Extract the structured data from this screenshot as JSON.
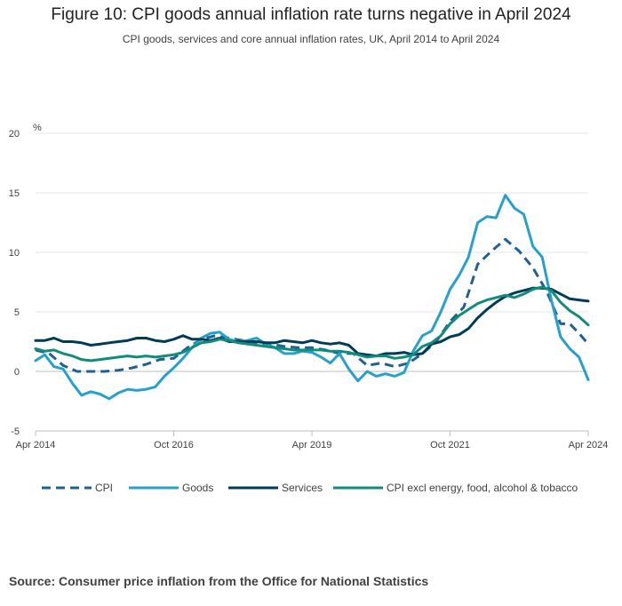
{
  "chart_data": {
    "type": "line",
    "title": "Figure 10: CPI goods annual inflation rate turns negative in April 2024",
    "subtitle": "CPI goods, services and core annual inflation rates, UK, April 2014 to April 2024",
    "ylabel": "%",
    "ylim": [
      -5,
      20
    ],
    "yticks": [
      -5,
      0,
      5,
      10,
      15,
      20
    ],
    "xlim": [
      0,
      120
    ],
    "xticks": [
      {
        "label": "Apr 2014",
        "x": 0
      },
      {
        "label": "Oct 2016",
        "x": 30
      },
      {
        "label": "Apr 2019",
        "x": 60
      },
      {
        "label": "Oct 2021",
        "x": 90
      },
      {
        "label": "Apr 2024",
        "x": 120
      }
    ],
    "grid": true,
    "legend_position": "bottom",
    "series": [
      {
        "name": "CPI",
        "color": "#206095",
        "dash": true,
        "x": [
          0,
          3,
          6,
          9,
          12,
          15,
          18,
          21,
          24,
          27,
          30,
          33,
          36,
          39,
          42,
          45,
          48,
          51,
          54,
          57,
          60,
          63,
          66,
          69,
          72,
          75,
          78,
          81,
          84,
          87,
          90,
          93,
          96,
          99,
          102,
          105,
          108,
          111,
          114,
          116,
          118,
          120
        ],
        "values": [
          1.8,
          1.5,
          0.5,
          0.0,
          0.0,
          0.0,
          0.1,
          0.3,
          0.6,
          1.0,
          1.1,
          2.0,
          2.7,
          3.0,
          2.8,
          2.6,
          2.4,
          2.3,
          2.1,
          2.0,
          2.0,
          1.8,
          1.5,
          1.5,
          0.5,
          0.7,
          0.4,
          0.7,
          1.5,
          2.5,
          4.2,
          5.4,
          9.0,
          10.1,
          11.1,
          10.1,
          8.7,
          6.7,
          4.0,
          4.0,
          3.2,
          2.3
        ]
      },
      {
        "name": "Goods",
        "color": "#27A0CC",
        "dash": false,
        "x": [
          0,
          2,
          4,
          6,
          8,
          10,
          12,
          14,
          16,
          18,
          20,
          22,
          24,
          26,
          28,
          30,
          32,
          34,
          36,
          38,
          40,
          42,
          44,
          46,
          48,
          50,
          52,
          54,
          56,
          58,
          60,
          62,
          64,
          66,
          68,
          70,
          72,
          74,
          76,
          78,
          80,
          82,
          84,
          86,
          88,
          90,
          92,
          94,
          96,
          98,
          100,
          102,
          104,
          106,
          108,
          110,
          112,
          114,
          116,
          118,
          120
        ],
        "values": [
          0.9,
          1.4,
          0.4,
          0.2,
          -1.0,
          -2.0,
          -1.7,
          -1.9,
          -2.3,
          -1.8,
          -1.5,
          -1.6,
          -1.5,
          -1.3,
          -0.4,
          0.3,
          1.1,
          2.0,
          2.8,
          3.2,
          3.3,
          2.7,
          2.5,
          2.6,
          2.8,
          2.3,
          2.0,
          1.5,
          1.5,
          1.7,
          1.6,
          1.2,
          0.7,
          1.5,
          0.2,
          -0.8,
          0.0,
          -0.4,
          -0.2,
          -0.4,
          -0.1,
          1.7,
          3.0,
          3.4,
          5.0,
          6.9,
          8.1,
          9.6,
          12.5,
          13.0,
          12.9,
          14.8,
          13.7,
          13.2,
          10.5,
          9.6,
          6.0,
          2.9,
          1.9,
          1.2,
          -0.7
        ]
      },
      {
        "name": "Services",
        "color": "#003C57",
        "dash": false,
        "x": [
          0,
          2,
          4,
          6,
          8,
          10,
          12,
          14,
          16,
          18,
          20,
          22,
          24,
          26,
          28,
          30,
          32,
          34,
          36,
          38,
          40,
          42,
          44,
          46,
          48,
          50,
          52,
          54,
          56,
          58,
          60,
          62,
          64,
          66,
          68,
          70,
          72,
          74,
          76,
          78,
          80,
          82,
          84,
          86,
          88,
          90,
          92,
          94,
          96,
          98,
          100,
          102,
          104,
          106,
          108,
          110,
          112,
          114,
          116,
          118,
          120
        ],
        "values": [
          2.6,
          2.6,
          2.8,
          2.5,
          2.5,
          2.4,
          2.2,
          2.3,
          2.4,
          2.5,
          2.6,
          2.8,
          2.8,
          2.6,
          2.5,
          2.7,
          3.0,
          2.7,
          2.7,
          2.6,
          2.8,
          2.5,
          2.5,
          2.5,
          2.5,
          2.4,
          2.4,
          2.6,
          2.5,
          2.4,
          2.6,
          2.4,
          2.3,
          2.4,
          2.2,
          1.5,
          1.4,
          1.3,
          1.5,
          1.5,
          1.6,
          1.4,
          1.5,
          2.3,
          2.5,
          2.9,
          3.1,
          3.6,
          4.5,
          5.2,
          5.8,
          6.3,
          6.6,
          6.8,
          7.0,
          7.0,
          6.9,
          6.5,
          6.1,
          6.0,
          5.9
        ]
      },
      {
        "name": "CPI excl energy, food, alcohol & tobacco",
        "color": "#118C7B",
        "dash": false,
        "x": [
          0,
          2,
          4,
          6,
          8,
          10,
          12,
          14,
          16,
          18,
          20,
          22,
          24,
          26,
          28,
          30,
          32,
          34,
          36,
          38,
          40,
          42,
          44,
          46,
          48,
          50,
          52,
          54,
          56,
          58,
          60,
          62,
          64,
          66,
          68,
          70,
          72,
          74,
          76,
          78,
          80,
          82,
          84,
          86,
          88,
          90,
          92,
          94,
          96,
          98,
          100,
          102,
          104,
          106,
          108,
          110,
          112,
          114,
          116,
          118,
          120
        ],
        "values": [
          1.9,
          1.7,
          1.8,
          1.5,
          1.3,
          1.0,
          0.9,
          1.0,
          1.1,
          1.2,
          1.3,
          1.2,
          1.3,
          1.2,
          1.3,
          1.4,
          1.6,
          2.0,
          2.4,
          2.5,
          2.7,
          2.6,
          2.4,
          2.3,
          2.2,
          2.1,
          2.0,
          1.9,
          1.8,
          1.8,
          1.8,
          1.8,
          1.7,
          1.7,
          1.6,
          1.4,
          1.2,
          1.3,
          1.3,
          1.1,
          1.2,
          1.4,
          2.1,
          2.4,
          3.0,
          4.0,
          4.7,
          5.2,
          5.7,
          6.0,
          6.2,
          6.4,
          6.2,
          6.5,
          6.9,
          7.1,
          6.8,
          5.8,
          5.1,
          4.6,
          3.9
        ]
      }
    ]
  },
  "source": "Source: Consumer price inflation from the Office for National Statistics"
}
